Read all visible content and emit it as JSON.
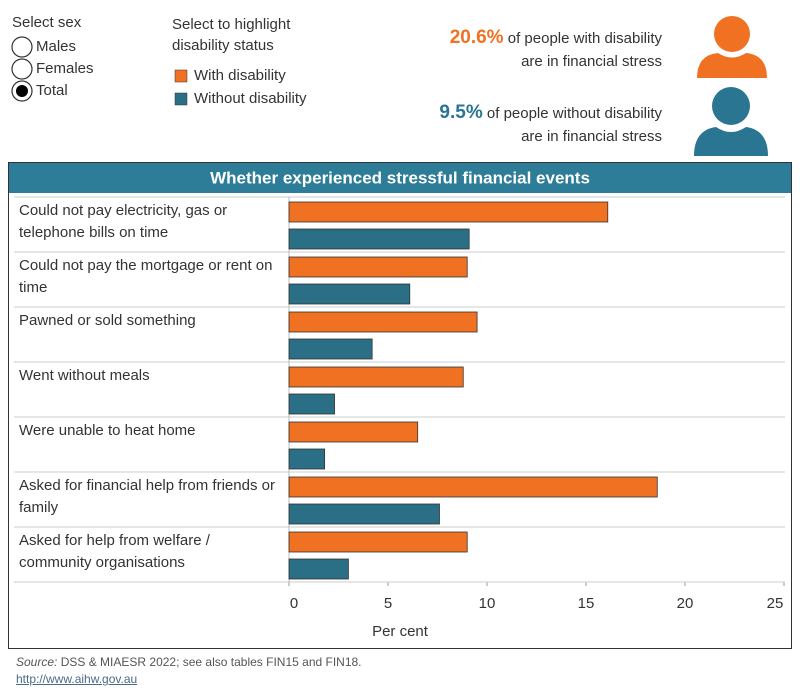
{
  "controls": {
    "sex": {
      "label": "Select sex",
      "options": [
        "Males",
        "Females",
        "Total"
      ],
      "selected": 2
    },
    "highlight_label": "Select to highlight disability status"
  },
  "stats": [
    {
      "value": "20.6%",
      "color": "#f07122",
      "lines": [
        "of people with disability",
        "are in financial stress"
      ]
    },
    {
      "value": "9.5%",
      "color": "#2a7592",
      "lines": [
        "of people without disability",
        "are in financial stress"
      ]
    }
  ],
  "chart_data": {
    "type": "bar",
    "orientation": "horizontal",
    "title": "Whether experienced stressful financial events",
    "categories": [
      "Could not pay electricity, gas or telephone bills on time",
      "Could not pay the mortgage or rent on time",
      "Pawned or sold something",
      "Went without meals",
      "Were unable to heat home",
      "Asked for financial help from friends or family",
      "Asked for help from welfare / community organisations"
    ],
    "series": [
      {
        "name": "With disability",
        "color": "#f07122",
        "values": [
          16.1,
          9.0,
          9.5,
          8.8,
          6.5,
          18.6,
          9.0
        ]
      },
      {
        "name": "Without disability",
        "color": "#2a6f86",
        "values": [
          9.1,
          6.1,
          4.2,
          2.3,
          1.8,
          7.6,
          3.0
        ]
      }
    ],
    "x_label": "Per cent",
    "xlim": [
      0,
      25
    ],
    "xticks": [
      0,
      5,
      10,
      15,
      20,
      25
    ]
  },
  "footer": {
    "source_label": "Source:",
    "source_text": "DSS & MIAESR 2022; see also tables FIN15 and FIN18.",
    "link": "http://www.aihw.gov.au"
  }
}
